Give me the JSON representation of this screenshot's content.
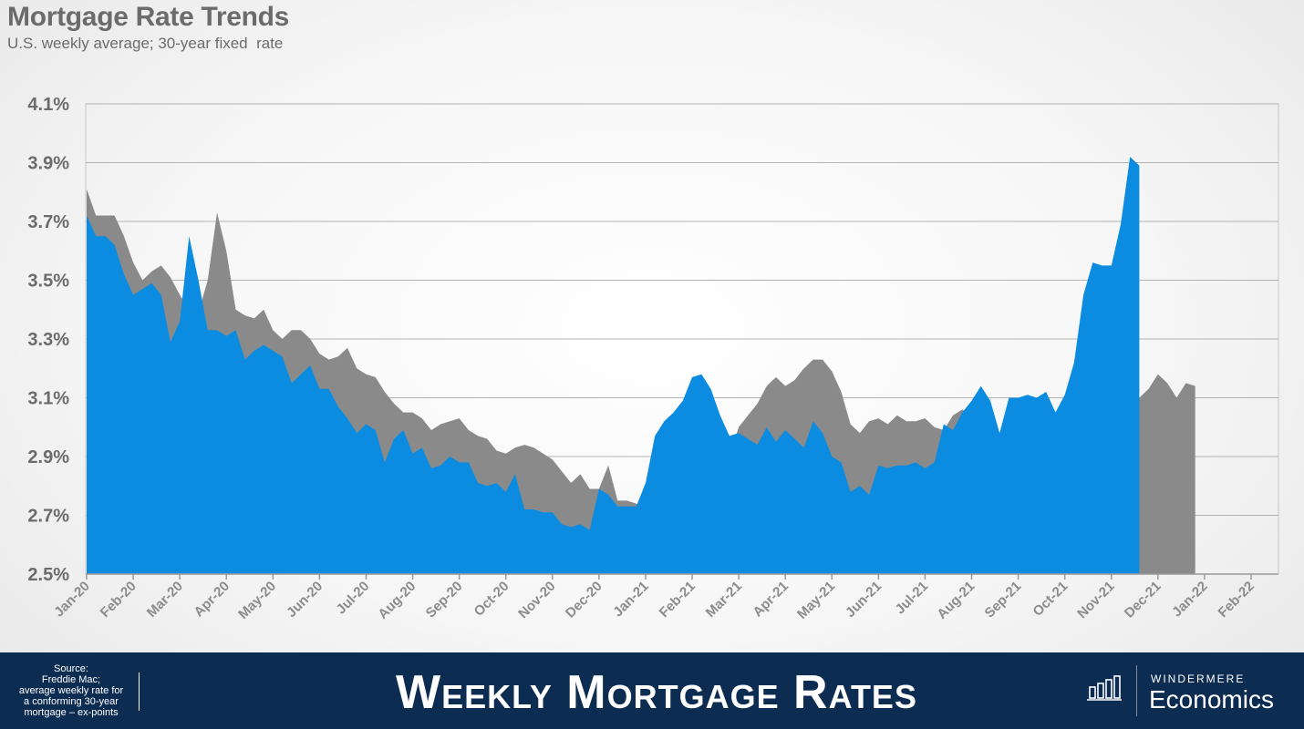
{
  "header": {
    "title": "Mortgage Rate Trends",
    "subtitle": "U.S. weekly average; 30-year fixed  rate"
  },
  "footer": {
    "source": "Source:\nFreddie Mac;\naverage weekly rate for\na conforming 30-year\nmortgage – ex-points",
    "banner": "Weekly Mortgage Rates",
    "brand_top": "WINDERMERE",
    "brand_bottom": "Economics"
  },
  "chart_data": {
    "type": "area",
    "ylim": [
      2.5,
      4.1
    ],
    "y_ticks": [
      "2.5%",
      "2.7%",
      "2.9%",
      "3.1%",
      "3.3%",
      "3.5%",
      "3.7%",
      "3.9%",
      "4.1%"
    ],
    "x_ticks": [
      "Jan-20",
      "Feb-20",
      "Mar-20",
      "Apr-20",
      "May-20",
      "Jun-20",
      "Jul-20",
      "Aug-20",
      "Sep-20",
      "Oct-20",
      "Nov-20",
      "Dec-20",
      "Jan-21",
      "Feb-21",
      "Mar-21",
      "Apr-21",
      "May-21",
      "Jun-21",
      "Jul-21",
      "Aug-21",
      "Sep-21",
      "Oct-21",
      "Nov-21",
      "Dec-21",
      "Jan-22",
      "Feb-22"
    ],
    "grid": true,
    "x_unit": "months since Jan-20",
    "colors": {
      "primary": "#0c8ce0",
      "secondary": "#8a8a8a",
      "grid": "#b3b3b3"
    },
    "series": [
      {
        "role": "gray-area",
        "points": [
          [
            0,
            3.81
          ],
          [
            0.2,
            3.72
          ],
          [
            0.4,
            3.72
          ],
          [
            0.6,
            3.72
          ],
          [
            0.8,
            3.65
          ],
          [
            1.0,
            3.56
          ],
          [
            1.2,
            3.5
          ],
          [
            1.4,
            3.53
          ],
          [
            1.6,
            3.55
          ],
          [
            1.8,
            3.51
          ],
          [
            2.0,
            3.45
          ],
          [
            2.2,
            3.4
          ],
          [
            2.4,
            3.39
          ],
          [
            2.6,
            3.5
          ],
          [
            2.8,
            3.73
          ],
          [
            3.0,
            3.6
          ],
          [
            3.2,
            3.4
          ],
          [
            3.4,
            3.38
          ],
          [
            3.6,
            3.37
          ],
          [
            3.8,
            3.4
          ],
          [
            4.0,
            3.33
          ],
          [
            4.2,
            3.3
          ],
          [
            4.4,
            3.33
          ],
          [
            4.6,
            3.33
          ],
          [
            4.8,
            3.3
          ],
          [
            5.0,
            3.25
          ],
          [
            5.2,
            3.23
          ],
          [
            5.4,
            3.24
          ],
          [
            5.6,
            3.27
          ],
          [
            5.8,
            3.2
          ],
          [
            6.0,
            3.18
          ],
          [
            6.2,
            3.17
          ],
          [
            6.4,
            3.12
          ],
          [
            6.6,
            3.08
          ],
          [
            6.8,
            3.05
          ],
          [
            7.0,
            3.05
          ],
          [
            7.2,
            3.03
          ],
          [
            7.4,
            2.99
          ],
          [
            7.6,
            3.01
          ],
          [
            7.8,
            3.02
          ],
          [
            8.0,
            3.03
          ],
          [
            8.2,
            2.99
          ],
          [
            8.4,
            2.97
          ],
          [
            8.6,
            2.96
          ],
          [
            8.8,
            2.92
          ],
          [
            9.0,
            2.91
          ],
          [
            9.2,
            2.93
          ],
          [
            9.4,
            2.94
          ],
          [
            9.6,
            2.93
          ],
          [
            9.8,
            2.91
          ],
          [
            10.0,
            2.89
          ],
          [
            10.2,
            2.85
          ],
          [
            10.4,
            2.81
          ],
          [
            10.6,
            2.84
          ],
          [
            10.8,
            2.79
          ],
          [
            11.0,
            2.79
          ],
          [
            11.2,
            2.87
          ],
          [
            11.4,
            2.75
          ],
          [
            11.6,
            2.75
          ],
          [
            11.8,
            2.74
          ],
          [
            12.0,
            2.72
          ],
          [
            12.2,
            2.7
          ],
          [
            12.4,
            2.71
          ],
          [
            12.6,
            2.7
          ],
          [
            12.8,
            2.73
          ],
          [
            13.0,
            2.81
          ],
          [
            13.2,
            2.8
          ],
          [
            13.4,
            2.77
          ],
          [
            13.6,
            2.82
          ],
          [
            13.8,
            2.9
          ],
          [
            14.0,
            3.0
          ],
          [
            14.2,
            3.04
          ],
          [
            14.4,
            3.08
          ],
          [
            14.6,
            3.14
          ],
          [
            14.8,
            3.17
          ],
          [
            15.0,
            3.14
          ],
          [
            15.2,
            3.16
          ],
          [
            15.4,
            3.2
          ],
          [
            15.6,
            3.23
          ],
          [
            15.8,
            3.23
          ],
          [
            16.0,
            3.19
          ],
          [
            16.2,
            3.12
          ],
          [
            16.4,
            3.01
          ],
          [
            16.6,
            2.98
          ],
          [
            16.8,
            3.02
          ],
          [
            17.0,
            3.03
          ],
          [
            17.2,
            3.01
          ],
          [
            17.4,
            3.04
          ],
          [
            17.6,
            3.02
          ],
          [
            17.8,
            3.02
          ],
          [
            18.0,
            3.03
          ],
          [
            18.2,
            3.0
          ],
          [
            18.4,
            2.99
          ],
          [
            18.6,
            3.04
          ],
          [
            18.8,
            3.06
          ],
          [
            19.0,
            3.04
          ],
          [
            19.2,
            2.98
          ],
          [
            19.4,
            2.93
          ],
          [
            19.6,
            2.9
          ],
          [
            19.8,
            2.87
          ],
          [
            20.0,
            2.88
          ],
          [
            20.2,
            2.88
          ],
          [
            20.4,
            2.89
          ],
          [
            20.6,
            2.91
          ],
          [
            20.8,
            2.9
          ],
          [
            21.0,
            2.92
          ],
          [
            21.2,
            3.0
          ],
          [
            21.4,
            3.02
          ],
          [
            21.6,
            3.06
          ],
          [
            21.8,
            3.1
          ],
          [
            22.0,
            3.12
          ],
          [
            22.2,
            3.08
          ],
          [
            22.4,
            3.02
          ],
          [
            22.6,
            3.1
          ],
          [
            22.8,
            3.13
          ],
          [
            23.0,
            3.18
          ],
          [
            23.2,
            3.15
          ],
          [
            23.4,
            3.1
          ],
          [
            23.6,
            3.15
          ],
          [
            23.8,
            3.14
          ]
        ]
      },
      {
        "role": "blue-area",
        "points": [
          [
            0,
            3.72
          ],
          [
            0.2,
            3.65
          ],
          [
            0.4,
            3.65
          ],
          [
            0.6,
            3.62
          ],
          [
            0.8,
            3.52
          ],
          [
            1.0,
            3.45
          ],
          [
            1.2,
            3.47
          ],
          [
            1.4,
            3.49
          ],
          [
            1.6,
            3.45
          ],
          [
            1.8,
            3.29
          ],
          [
            2.0,
            3.36
          ],
          [
            2.2,
            3.65
          ],
          [
            2.4,
            3.5
          ],
          [
            2.6,
            3.33
          ],
          [
            2.8,
            3.33
          ],
          [
            3.0,
            3.31
          ],
          [
            3.2,
            3.33
          ],
          [
            3.4,
            3.23
          ],
          [
            3.6,
            3.26
          ],
          [
            3.8,
            3.28
          ],
          [
            4.0,
            3.26
          ],
          [
            4.2,
            3.24
          ],
          [
            4.4,
            3.15
          ],
          [
            4.6,
            3.18
          ],
          [
            4.8,
            3.21
          ],
          [
            5.0,
            3.13
          ],
          [
            5.2,
            3.13
          ],
          [
            5.4,
            3.07
          ],
          [
            5.6,
            3.03
          ],
          [
            5.8,
            2.98
          ],
          [
            6.0,
            3.01
          ],
          [
            6.2,
            2.99
          ],
          [
            6.4,
            2.88
          ],
          [
            6.6,
            2.96
          ],
          [
            6.8,
            2.99
          ],
          [
            7.0,
            2.91
          ],
          [
            7.2,
            2.93
          ],
          [
            7.4,
            2.86
          ],
          [
            7.6,
            2.87
          ],
          [
            7.8,
            2.9
          ],
          [
            8.0,
            2.88
          ],
          [
            8.2,
            2.88
          ],
          [
            8.4,
            2.81
          ],
          [
            8.6,
            2.8
          ],
          [
            8.8,
            2.81
          ],
          [
            9.0,
            2.78
          ],
          [
            9.2,
            2.84
          ],
          [
            9.4,
            2.72
          ],
          [
            9.6,
            2.72
          ],
          [
            9.8,
            2.71
          ],
          [
            10.0,
            2.71
          ],
          [
            10.2,
            2.67
          ],
          [
            10.4,
            2.66
          ],
          [
            10.6,
            2.67
          ],
          [
            10.8,
            2.65
          ],
          [
            11.0,
            2.79
          ],
          [
            11.2,
            2.77
          ],
          [
            11.4,
            2.73
          ],
          [
            11.6,
            2.73
          ],
          [
            11.8,
            2.73
          ],
          [
            12.0,
            2.81
          ],
          [
            12.2,
            2.97
          ],
          [
            12.4,
            3.02
          ],
          [
            12.6,
            3.05
          ],
          [
            12.8,
            3.09
          ],
          [
            13.0,
            3.17
          ],
          [
            13.2,
            3.18
          ],
          [
            13.4,
            3.13
          ],
          [
            13.6,
            3.04
          ],
          [
            13.8,
            2.97
          ],
          [
            14.0,
            2.98
          ],
          [
            14.2,
            2.96
          ],
          [
            14.4,
            2.94
          ],
          [
            14.6,
            3.0
          ],
          [
            14.8,
            2.95
          ],
          [
            15.0,
            2.99
          ],
          [
            15.2,
            2.96
          ],
          [
            15.4,
            2.93
          ],
          [
            15.6,
            3.02
          ],
          [
            15.8,
            2.98
          ],
          [
            16.0,
            2.9
          ],
          [
            16.2,
            2.88
          ],
          [
            16.4,
            2.78
          ],
          [
            16.6,
            2.8
          ],
          [
            16.8,
            2.77
          ],
          [
            17.0,
            2.87
          ],
          [
            17.2,
            2.86
          ],
          [
            17.4,
            2.87
          ],
          [
            17.6,
            2.87
          ],
          [
            17.8,
            2.88
          ],
          [
            18.0,
            2.86
          ],
          [
            18.2,
            2.88
          ],
          [
            18.4,
            3.01
          ],
          [
            18.6,
            2.99
          ],
          [
            18.8,
            3.05
          ],
          [
            19.0,
            3.09
          ],
          [
            19.2,
            3.14
          ],
          [
            19.4,
            3.09
          ],
          [
            19.6,
            2.98
          ],
          [
            19.8,
            3.1
          ],
          [
            20.0,
            3.1
          ],
          [
            20.2,
            3.11
          ],
          [
            20.4,
            3.1
          ],
          [
            20.6,
            3.12
          ],
          [
            20.8,
            3.05
          ],
          [
            21.0,
            3.11
          ],
          [
            21.2,
            3.22
          ],
          [
            21.4,
            3.45
          ],
          [
            21.6,
            3.56
          ],
          [
            21.8,
            3.55
          ],
          [
            22.0,
            3.55
          ],
          [
            22.2,
            3.69
          ],
          [
            22.4,
            3.92
          ],
          [
            22.6,
            3.89
          ]
        ]
      }
    ]
  }
}
